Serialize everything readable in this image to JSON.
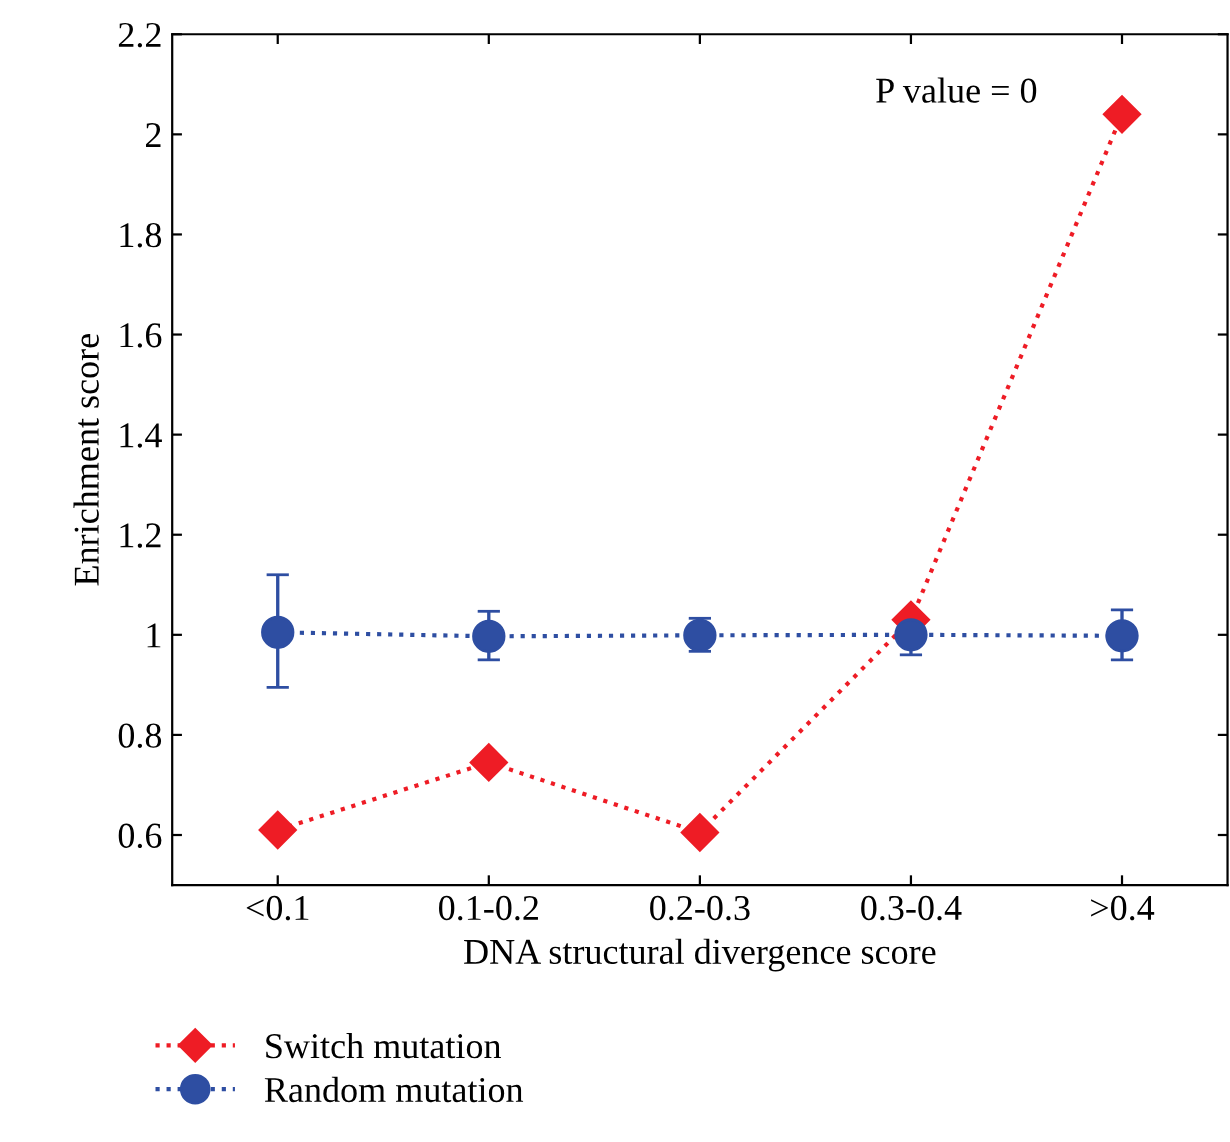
{
  "chart_data": {
    "type": "line",
    "xlabel": "DNA structural divergence score",
    "ylabel": "Enrichment score",
    "categories": [
      "<0.1",
      "0.1-0.2",
      "0.2-0.3",
      "0.3-0.4",
      ">0.4"
    ],
    "series": [
      {
        "name": "Switch mutation",
        "color": "#ee1c25",
        "marker": "diamond",
        "values": [
          0.61,
          0.745,
          0.605,
          1.03,
          2.04
        ]
      },
      {
        "name": "Random mutation",
        "color": "#2e4ea2",
        "marker": "circle",
        "values": [
          1.005,
          0.997,
          0.999,
          1.0,
          0.998
        ],
        "errors": [
          [
            0.895,
            1.12
          ],
          [
            0.95,
            1.047
          ],
          [
            0.967,
            1.033
          ],
          [
            0.96,
            1.04
          ],
          [
            0.95,
            1.05
          ]
        ]
      }
    ],
    "line_style": "dotted",
    "ylim": [
      0.5,
      2.2
    ],
    "yticks": [
      0.6,
      0.8,
      1,
      1.2,
      1.4,
      1.6,
      1.8,
      2,
      2.2
    ],
    "grid": false,
    "legend": "bottom left",
    "annotations": [
      "P value = 0"
    ]
  }
}
